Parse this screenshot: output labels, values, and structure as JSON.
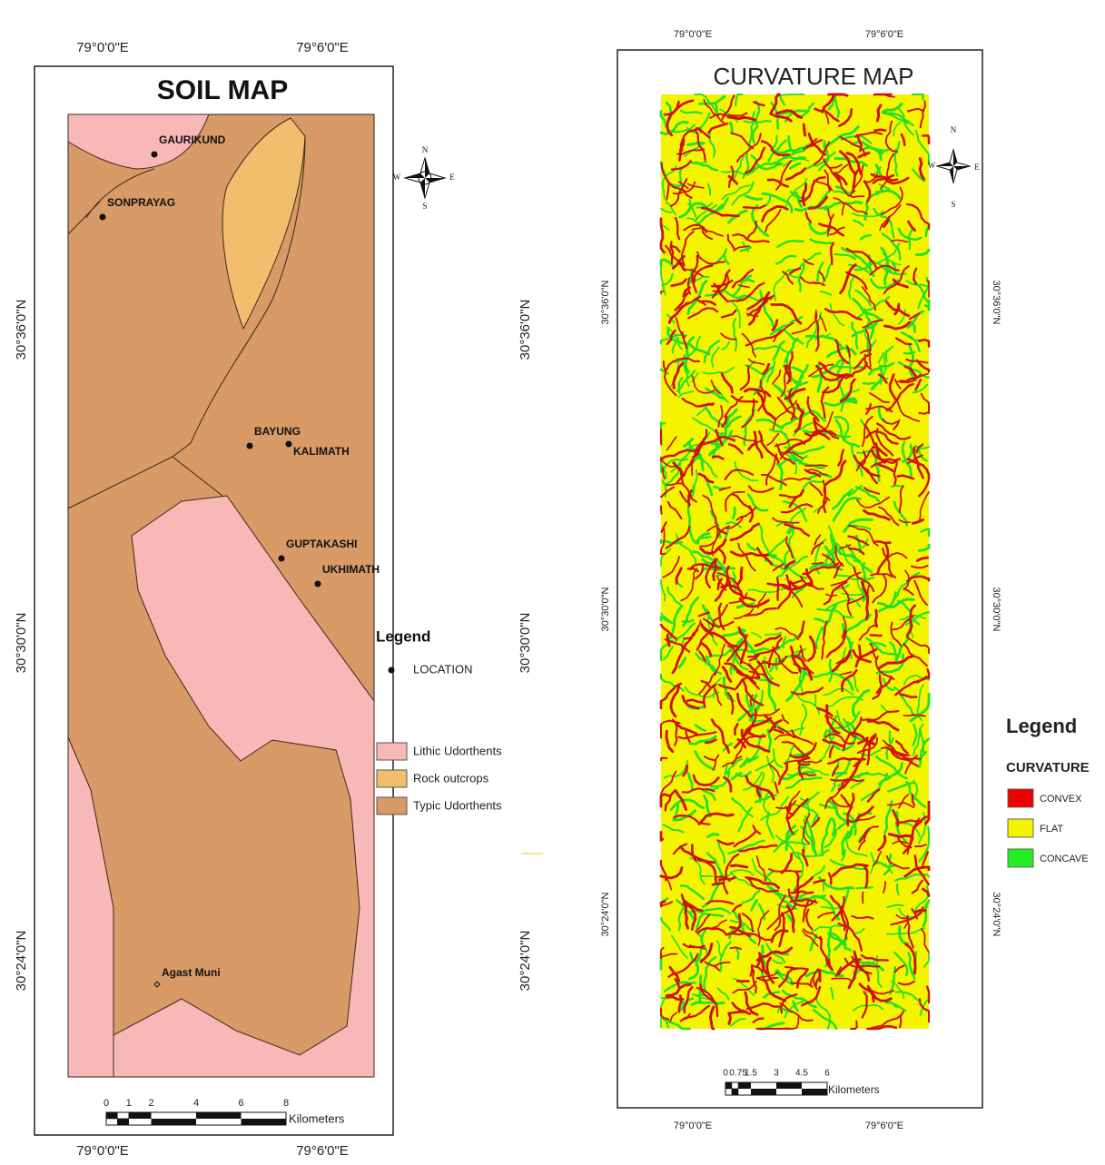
{
  "soil_map": {
    "title": "SOIL MAP",
    "lon_labels": [
      "79°0'0\"E",
      "79°6'0\"E"
    ],
    "lat_labels": [
      "30°36'0\"N",
      "30°30'0\"N",
      "30°24'0\"N"
    ],
    "places": [
      "GAURIKUND",
      "SONPRAYAG",
      "BAYUNG",
      "KALIMATH",
      "GUPTAKASHI",
      "UKHIMATH",
      "Agast Muni"
    ],
    "legend": {
      "title": "Legend",
      "point": "LOCATION",
      "items": [
        "Lithic Udorthents",
        "Rock outcrops",
        "Typic Udorthents"
      ]
    },
    "scale": {
      "ticks": [
        0,
        1,
        2,
        4,
        6,
        8
      ],
      "unit": "Kilometers"
    },
    "compass": {
      "n": "N",
      "s": "S",
      "e": "E",
      "w": "W"
    }
  },
  "curvature_map": {
    "title": "CURVATURE MAP",
    "lon_labels": [
      "79°0'0\"E",
      "79°6'0\"E"
    ],
    "lat_labels": [
      "30°36'0\"N",
      "30°30'0\"N",
      "30°24'0\"N"
    ],
    "legend": {
      "title": "Legend",
      "subtitle": "CURVATURE",
      "items": [
        "CONVEX",
        "FLAT",
        "CONCAVE"
      ]
    },
    "scale": {
      "ticks": [
        0,
        0.75,
        1.5,
        3,
        4.5,
        6
      ],
      "unit": "Kilometers"
    },
    "compass": {
      "n": "N",
      "s": "S",
      "e": "E",
      "w": "W"
    }
  }
}
